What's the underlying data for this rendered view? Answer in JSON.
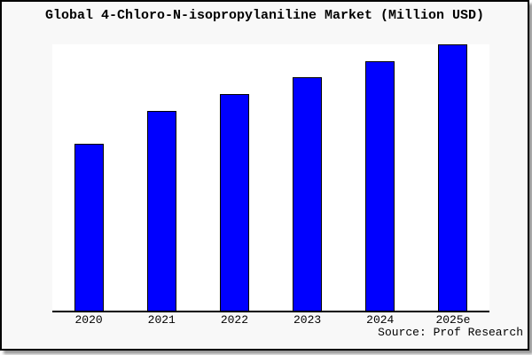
{
  "chart": {
    "title": "Global 4-Chloro-N-isopropylaniline Market (Million USD)",
    "source": "Source: Prof Research"
  },
  "chart_data": {
    "type": "bar",
    "title": "Global 4-Chloro-N-isopropylaniline Market (Million USD)",
    "categories": [
      "2020",
      "2021",
      "2022",
      "2023",
      "2024",
      "2025e"
    ],
    "values": [
      62.8,
      75.1,
      81.3,
      87.8,
      93.6,
      100
    ],
    "value_basis": "relative bar heights; no y-axis labels shown in chart, tallest bar (2025e) = 100",
    "xlabel": "",
    "ylabel": "",
    "ylim": [
      0,
      100
    ],
    "grid": false,
    "legend": false,
    "bar_color": "#0000ff",
    "bar_edge_color": "#000000",
    "plot_background": "#ffffff",
    "figure_background": "#f8f8f8",
    "frame_border_color": "#000000",
    "source": "Source: Prof Research"
  }
}
